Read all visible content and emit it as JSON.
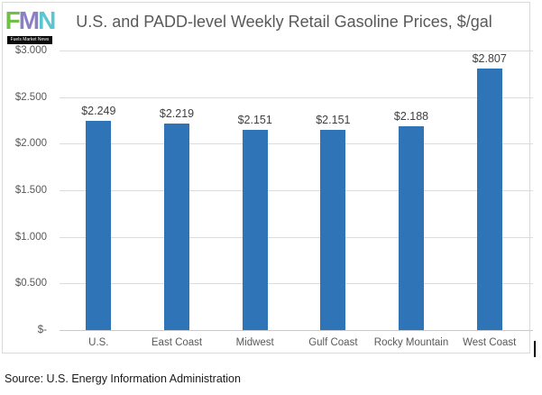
{
  "header": {
    "logo": {
      "letters": [
        {
          "char": "F",
          "color": "#6fbf49"
        },
        {
          "char": "M",
          "color": "#8b7fc7"
        },
        {
          "char": "N",
          "color": "#5ac6cf"
        }
      ],
      "banner_text": "Fuels Market News"
    }
  },
  "chart_data": {
    "type": "bar",
    "title": "U.S. and PADD-level Weekly Retail Gasoline Prices, $/gal",
    "categories": [
      "U.S.",
      "East Coast",
      "Midwest",
      "Gulf Coast",
      "Rocky Mountain",
      "West Coast"
    ],
    "values": [
      2.249,
      2.219,
      2.151,
      2.151,
      2.188,
      2.807
    ],
    "value_labels": [
      "$2.249",
      "$2.219",
      "$2.151",
      "$2.151",
      "$2.188",
      "$2.807"
    ],
    "xlabel": "",
    "ylabel": "",
    "ylim": [
      0,
      3.0
    ],
    "yticks": [
      {
        "value": 3.0,
        "label": "$3.000"
      },
      {
        "value": 2.5,
        "label": "$2.500"
      },
      {
        "value": 2.0,
        "label": "$2.000"
      },
      {
        "value": 1.5,
        "label": "$1.500"
      },
      {
        "value": 1.0,
        "label": "$1.000"
      },
      {
        "value": 0.5,
        "label": "$0.500"
      },
      {
        "value": 0.0,
        "label": "$-"
      }
    ],
    "grid": true,
    "legend": "none",
    "bar_color": "#2e74b6"
  },
  "footer": {
    "source": "Source: U.S. Energy Information Administration"
  },
  "colors": {
    "title_text": "#595959",
    "axis_text": "#595959",
    "value_label_text": "#404040",
    "gridline": "#dcdcdc",
    "frame_border": "#d9d9d9",
    "background": "#ffffff"
  }
}
